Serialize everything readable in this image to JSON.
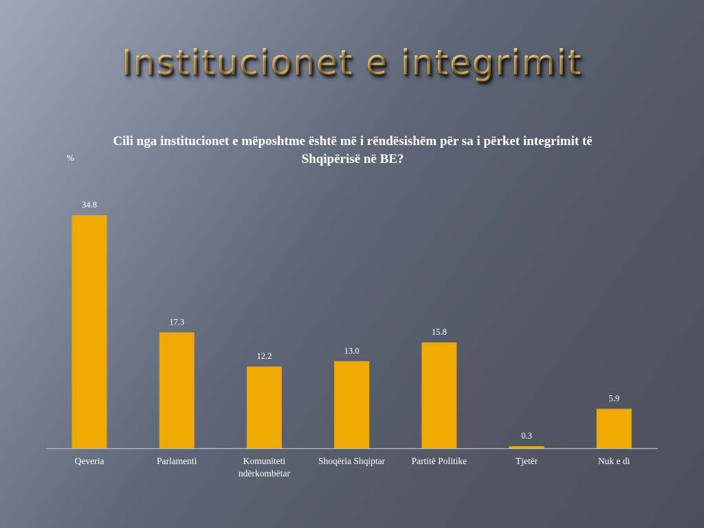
{
  "slide": {
    "title": "Institucionet e integrimit"
  },
  "chart_data": {
    "type": "bar",
    "title": "Cili nga institucionet e mëposhtme është më i rëndësishëm për sa i përket integrimit të Shqipërisë në BE?",
    "ylabel": "%",
    "categories": [
      "Qeveria",
      "Parlamenti",
      "Komuniteti ndërkombëtar",
      "Shoqëria Shqiptar",
      "Partitë Politike",
      "Tjetër",
      "Nuk e di"
    ],
    "values": [
      34.8,
      17.3,
      12.2,
      13.0,
      15.8,
      0.3,
      5.9
    ],
    "value_labels": [
      "34.8",
      "17.3",
      "12.2",
      "13.0",
      "15.8",
      "0.3",
      "5.9"
    ],
    "ylim": [
      0,
      35
    ],
    "grid": false,
    "bar_color": "#eeaa00"
  }
}
